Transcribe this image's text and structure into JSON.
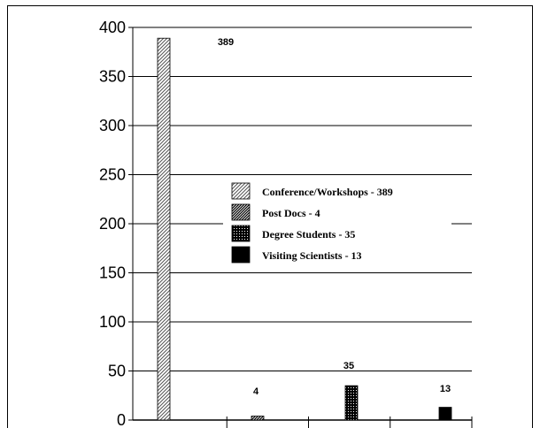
{
  "chart_data": {
    "type": "bar",
    "categories": [
      "Conference/Workshops",
      "Post Docs",
      "Degree Students",
      "Visiting Scientists"
    ],
    "values": [
      389,
      4,
      35,
      13
    ],
    "data_labels": [
      "389",
      "4",
      "35",
      "13"
    ],
    "ylim": [
      0,
      400
    ],
    "yticks": [
      0,
      50,
      100,
      150,
      200,
      250,
      300,
      350,
      400
    ],
    "ytick_labels": [
      "0",
      "50",
      "100",
      "150",
      "200",
      "250",
      "300",
      "350",
      "400"
    ],
    "grid": true,
    "legend_position": "center-right",
    "legend": [
      {
        "label": "Conference/Workshops - 389",
        "pattern": "diagonal-light"
      },
      {
        "label": "Post Docs - 4",
        "pattern": "diagonal-dense"
      },
      {
        "label": "Degree Students - 35",
        "pattern": "dots"
      },
      {
        "label": "Visiting Scientists - 13",
        "pattern": "solid"
      }
    ],
    "colors": {
      "bar_dark": "#000000",
      "bar_light": "#ffffff",
      "grid": "#000000"
    }
  }
}
